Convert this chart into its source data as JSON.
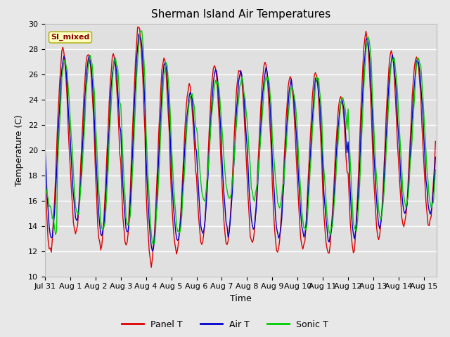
{
  "title": "Sherman Island Air Temperatures",
  "xlabel": "Time",
  "ylabel": "Temperature (C)",
  "ylim": [
    10,
    30
  ],
  "xlim_start": 0,
  "xlim_end": 15.5,
  "background_color": "#e8e8e8",
  "plot_bg_color": "#e0e0e0",
  "grid_color": "#ffffff",
  "tick_labels": [
    "Jul 31",
    "Aug 1",
    "Aug 2",
    "Aug 3",
    "Aug 4",
    "Aug 5",
    "Aug 6",
    "Aug 7",
    "Aug 8",
    "Aug 9",
    "Aug 10",
    "Aug 11",
    "Aug 12",
    "Aug 13",
    "Aug 14",
    "Aug 15"
  ],
  "tick_positions": [
    0,
    1,
    2,
    3,
    4,
    5,
    6,
    7,
    8,
    9,
    10,
    11,
    12,
    13,
    14,
    15
  ],
  "yticks": [
    10,
    12,
    14,
    16,
    18,
    20,
    22,
    24,
    26,
    28,
    30
  ],
  "legend_label_box": "SI_mixed",
  "legend_label_box_bg": "#ffffc0",
  "legend_label_box_text": "#8b0000",
  "legend_label_box_edge": "#aaaa00",
  "series": {
    "panel_t": {
      "color": "#dd0000",
      "label": "Panel T",
      "lw": 1.0
    },
    "air_t": {
      "color": "#0000cc",
      "label": "Air T",
      "lw": 1.0
    },
    "sonic_t": {
      "color": "#00cc00",
      "label": "Sonic T",
      "lw": 1.0
    }
  },
  "figsize": [
    6.4,
    4.8
  ],
  "dpi": 100
}
